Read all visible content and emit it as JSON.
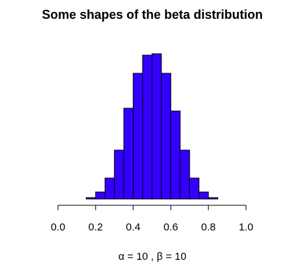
{
  "chart_data": {
    "type": "bar",
    "title": "Some shapes of the beta distribution",
    "xlabel": "α = 10 , β = 10",
    "ylabel": "",
    "bins": [
      [
        0.0,
        0.05
      ],
      [
        0.05,
        0.1
      ],
      [
        0.1,
        0.15
      ],
      [
        0.15,
        0.2
      ],
      [
        0.2,
        0.25
      ],
      [
        0.25,
        0.3
      ],
      [
        0.3,
        0.35
      ],
      [
        0.35,
        0.4
      ],
      [
        0.4,
        0.45
      ],
      [
        0.45,
        0.5
      ],
      [
        0.5,
        0.55
      ],
      [
        0.55,
        0.6
      ],
      [
        0.6,
        0.65
      ],
      [
        0.65,
        0.7
      ],
      [
        0.7,
        0.75
      ],
      [
        0.75,
        0.8
      ],
      [
        0.8,
        0.85
      ],
      [
        0.85,
        0.9
      ],
      [
        0.9,
        0.95
      ],
      [
        0.95,
        1.0
      ]
    ],
    "values": [
      0.0,
      0.0,
      0.0,
      0.01,
      0.05,
      0.15,
      0.35,
      0.65,
      0.9,
      1.03,
      1.04,
      0.9,
      0.63,
      0.35,
      0.15,
      0.05,
      0.01,
      0.0,
      0.0,
      0.0
    ],
    "xlim": [
      0,
      1
    ],
    "ylim": [
      0,
      1.15
    ],
    "xticks": [
      "0.0",
      "0.2",
      "0.4",
      "0.6",
      "0.8",
      "1.0"
    ],
    "xtick_values": [
      0.0,
      0.2,
      0.4,
      0.6,
      0.8,
      1.0
    ],
    "bar_color": "#3300ff",
    "grid": false,
    "legend": "none"
  }
}
